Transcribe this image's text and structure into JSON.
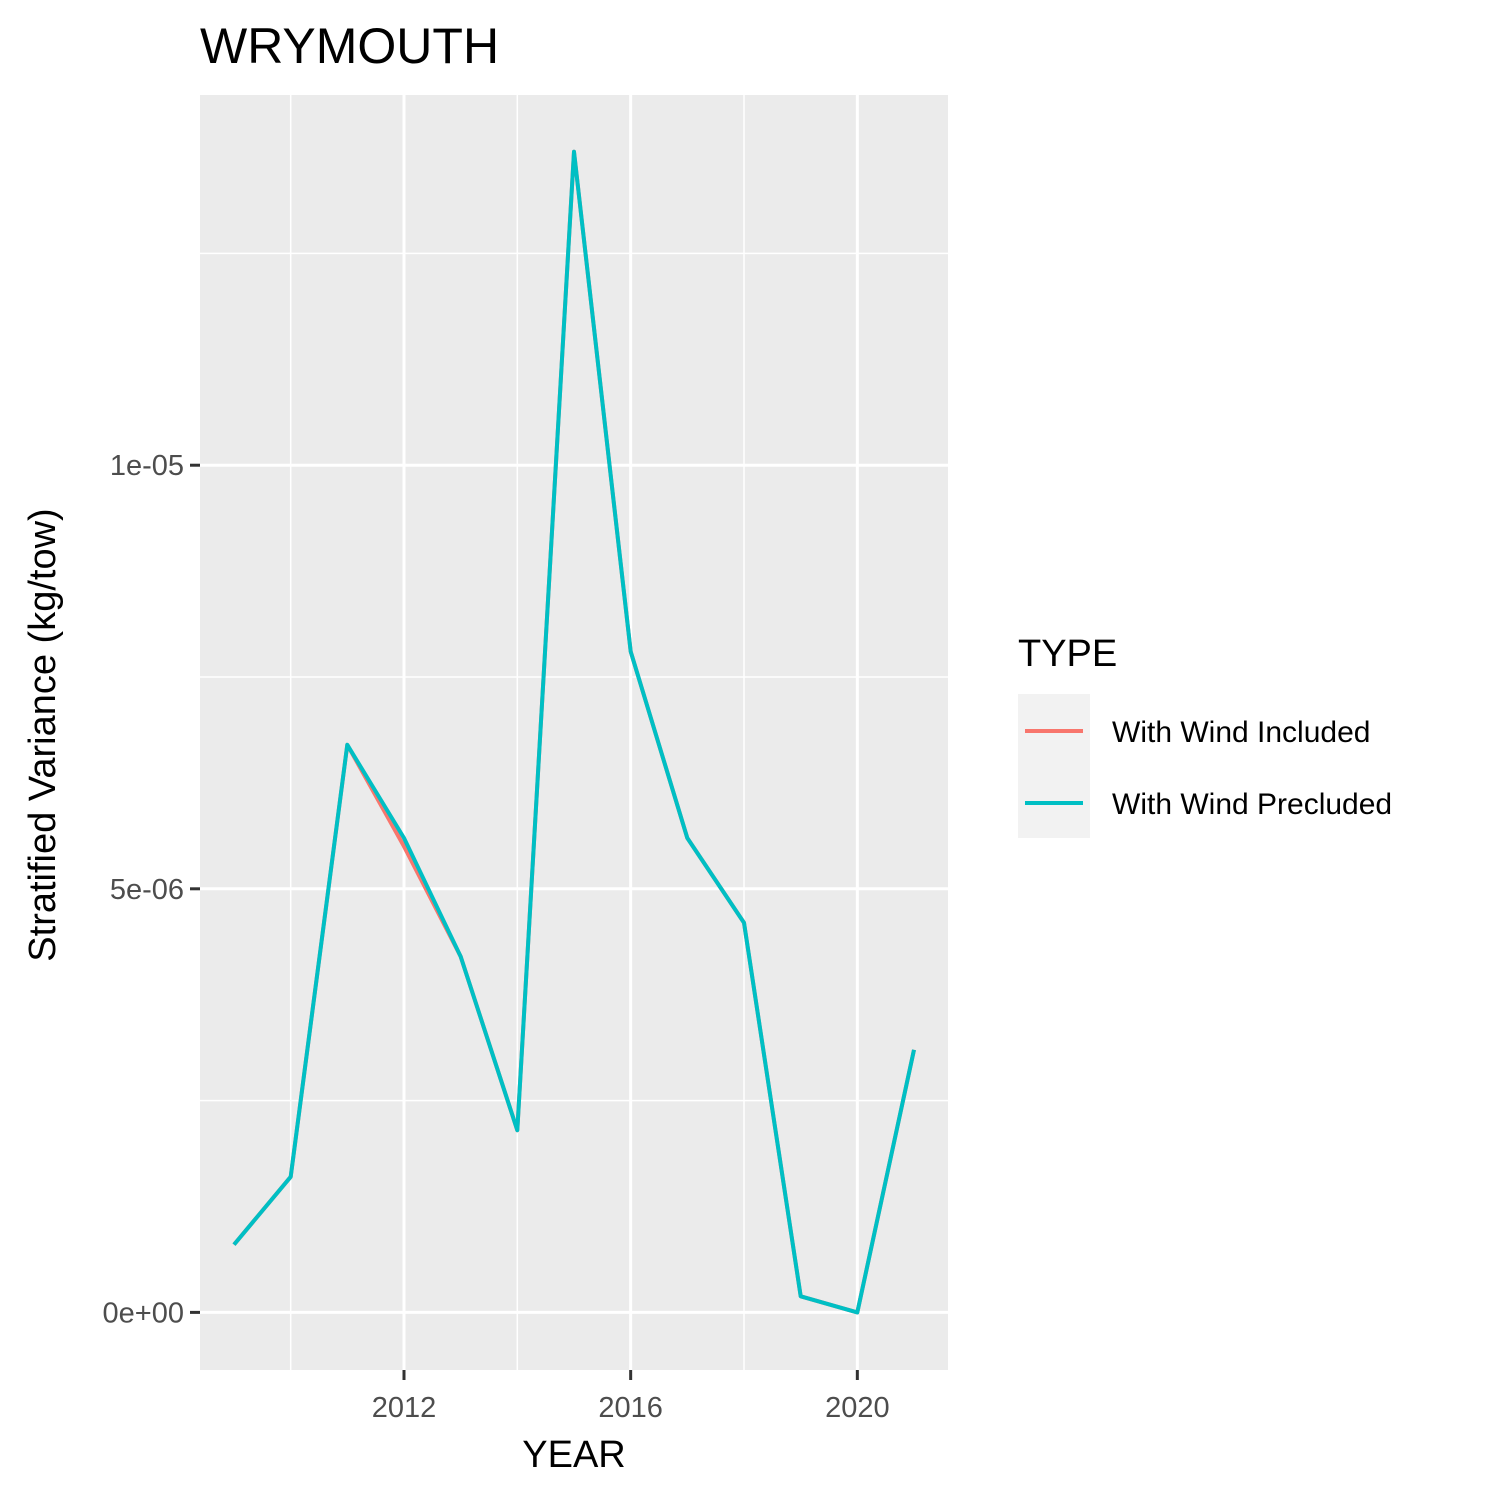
{
  "chart_data": {
    "type": "line",
    "title": "WRYMOUTH",
    "xlabel": "YEAR",
    "ylabel": "Stratified Variance (kg/tow)",
    "x": [
      2009,
      2010,
      2011,
      2012,
      2013,
      2014,
      2015,
      2016,
      2017,
      2018,
      2019,
      2020,
      2021
    ],
    "x_ticks": [
      2012,
      2016,
      2020
    ],
    "x_tick_labels": [
      "2012",
      "2016",
      "2020"
    ],
    "y_ticks": [
      0,
      5e-06,
      1e-05
    ],
    "y_tick_labels": [
      "0e+00",
      "5e-06",
      "1e-05"
    ],
    "xlim": [
      2008.4,
      2021.6
    ],
    "ylim": [
      -6.8e-07,
      1.437e-05
    ],
    "grid": true,
    "legend": {
      "title": "TYPE",
      "position": "right"
    },
    "series": [
      {
        "name": "With Wind Included",
        "color": "#F8766D",
        "values": [
          8e-07,
          1.6e-06,
          6.7e-06,
          5.5e-06,
          4.2e-06,
          2.15e-06,
          1.37e-05,
          7.8e-06,
          5.6e-06,
          4.6e-06,
          1.9e-07,
          0.0,
          3.1e-06
        ]
      },
      {
        "name": "With Wind Precluded",
        "color": "#00BFC4",
        "values": [
          8e-07,
          1.6e-06,
          6.7e-06,
          5.6e-06,
          4.2e-06,
          2.15e-06,
          1.37e-05,
          7.8e-06,
          5.6e-06,
          4.6e-06,
          1.9e-07,
          0.0,
          3.1e-06
        ]
      }
    ]
  }
}
